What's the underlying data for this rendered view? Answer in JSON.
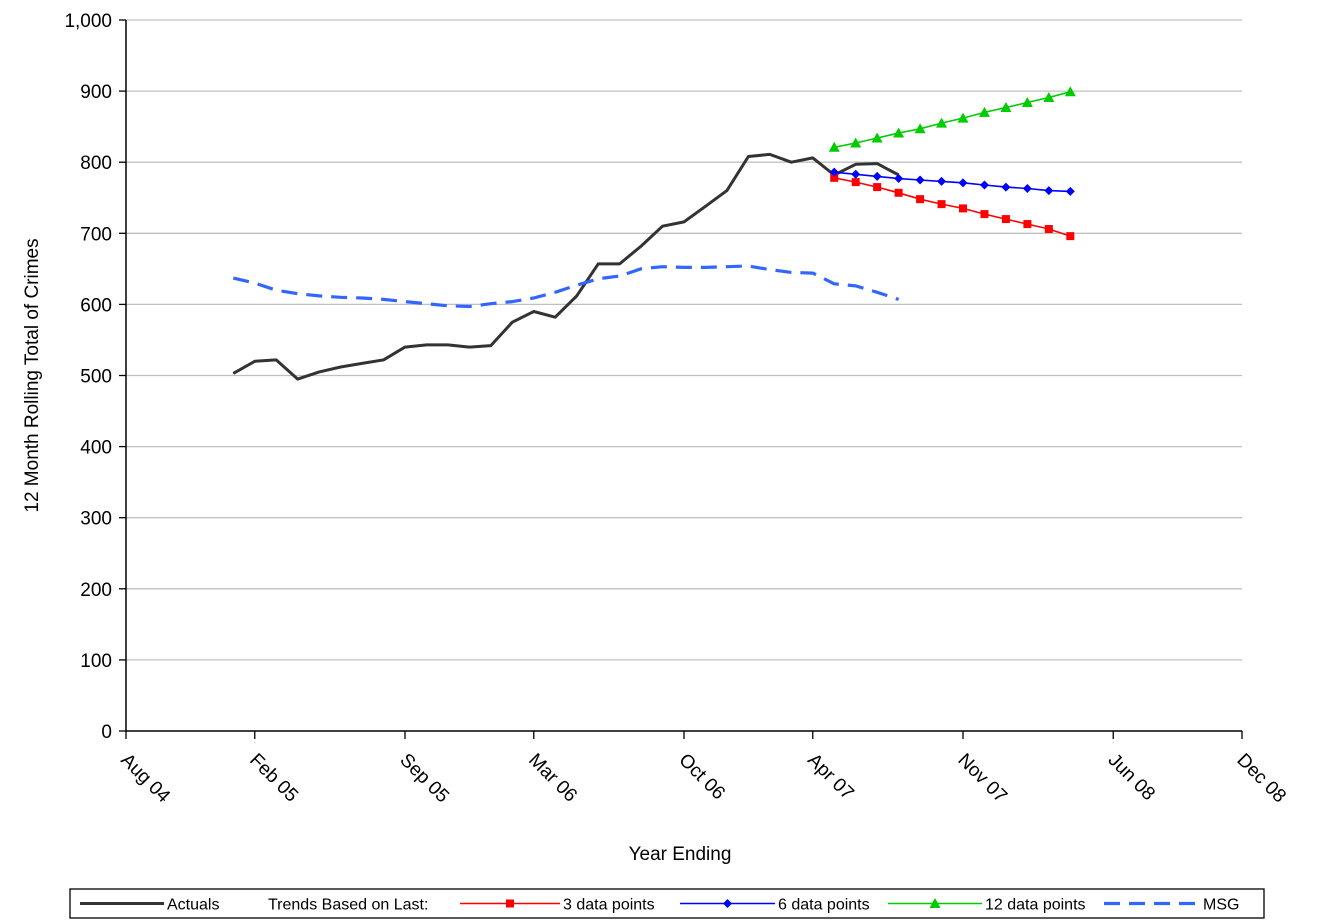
{
  "chart_data": {
    "type": "line",
    "title": "",
    "xlabel": "Year Ending",
    "ylabel": "12 Month Rolling Total of Crimes",
    "ylim": [
      0,
      1000
    ],
    "y_ticks": [
      "0",
      "100",
      "200",
      "300",
      "400",
      "500",
      "600",
      "700",
      "800",
      "900",
      "1,000"
    ],
    "x_ticks": [
      "Aug 04",
      "Feb 05",
      "Sep 05",
      "Mar 06",
      "Oct 06",
      "Apr 07",
      "Nov 07",
      "Jun 08",
      "Dec 08"
    ],
    "grid": true,
    "legend_position": "bottom",
    "legend_trend_prefix": "Trends Based on Last:",
    "series": [
      {
        "name": "Actuals",
        "color": "#333333",
        "style": "solid",
        "marker": "none",
        "x_start": "Jan 05",
        "y": [
          503,
          520,
          522,
          495,
          505,
          512,
          517,
          522,
          540,
          543,
          543,
          540,
          542,
          575,
          590,
          582,
          612,
          657,
          657,
          682,
          710,
          716,
          738,
          760,
          808,
          811,
          800,
          806,
          782,
          797,
          798,
          782
        ]
      },
      {
        "name": "3 data points",
        "color": "#ff0000",
        "style": "solid",
        "marker": "square",
        "x_start": "May 07",
        "y": [
          778,
          772,
          765,
          757,
          748,
          741,
          735,
          727,
          720,
          713,
          706,
          696
        ]
      },
      {
        "name": "6 data points",
        "color": "#0000ff",
        "style": "solid",
        "marker": "diamond",
        "x_start": "May 07",
        "y": [
          786,
          783,
          780,
          777,
          775,
          773,
          771,
          768,
          765,
          763,
          760,
          759
        ]
      },
      {
        "name": "12 data points",
        "color": "#00cc00",
        "style": "solid",
        "marker": "triangle",
        "x_start": "May 07",
        "y": [
          821,
          827,
          834,
          841,
          847,
          855,
          862,
          870,
          877,
          884,
          891,
          899
        ]
      },
      {
        "name": "MSG",
        "color": "#3366ff",
        "style": "dashed",
        "marker": "none",
        "x_start": "Jan 05",
        "y": [
          637,
          630,
          620,
          615,
          612,
          610,
          609,
          607,
          604,
          601,
          598,
          597,
          601,
          604,
          609,
          617,
          627,
          636,
          640,
          650,
          653,
          652,
          652,
          653,
          654,
          649,
          645,
          644,
          629,
          626,
          617,
          607
        ]
      }
    ]
  }
}
